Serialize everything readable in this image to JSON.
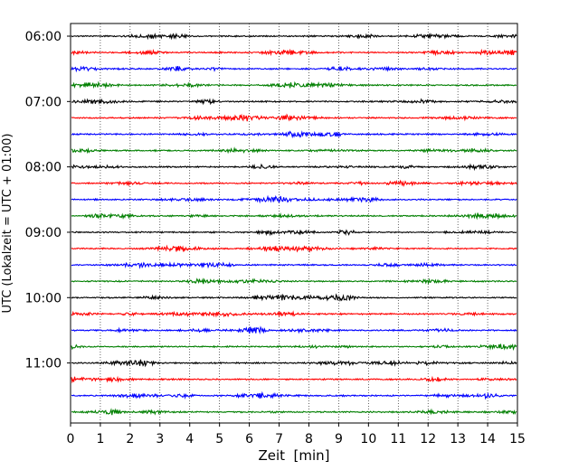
{
  "chart_data": {
    "type": "line",
    "title": "",
    "xlabel": "Zeit  [min]",
    "ylabel": "UTC (Lokalzeit = UTC + 01:00)",
    "xlim": [
      0,
      15
    ],
    "x_ticks": [
      "0",
      "1",
      "2",
      "3",
      "4",
      "5",
      "6",
      "7",
      "8",
      "9",
      "10",
      "11",
      "12",
      "13",
      "14",
      "15"
    ],
    "y_ticks": [
      "06:00",
      "07:00",
      "08:00",
      "09:00",
      "10:00",
      "11:00"
    ],
    "grid": "vertical dotted",
    "trace_colors": [
      "#000000",
      "#ff0000",
      "#0000ff",
      "#007f00"
    ],
    "traces": [
      {
        "start": "06:00",
        "color": "#000000"
      },
      {
        "start": "06:15",
        "color": "#ff0000"
      },
      {
        "start": "06:30",
        "color": "#0000ff"
      },
      {
        "start": "06:45",
        "color": "#007f00"
      },
      {
        "start": "07:00",
        "color": "#000000"
      },
      {
        "start": "07:15",
        "color": "#ff0000"
      },
      {
        "start": "07:30",
        "color": "#0000ff"
      },
      {
        "start": "07:45",
        "color": "#007f00"
      },
      {
        "start": "08:00",
        "color": "#000000"
      },
      {
        "start": "08:15",
        "color": "#ff0000"
      },
      {
        "start": "08:30",
        "color": "#0000ff"
      },
      {
        "start": "08:45",
        "color": "#007f00"
      },
      {
        "start": "09:00",
        "color": "#000000"
      },
      {
        "start": "09:15",
        "color": "#ff0000"
      },
      {
        "start": "09:30",
        "color": "#0000ff"
      },
      {
        "start": "09:45",
        "color": "#007f00"
      },
      {
        "start": "10:00",
        "color": "#000000"
      },
      {
        "start": "10:15",
        "color": "#ff0000"
      },
      {
        "start": "10:30",
        "color": "#0000ff"
      },
      {
        "start": "10:45",
        "color": "#007f00"
      },
      {
        "start": "11:00",
        "color": "#000000"
      },
      {
        "start": "11:15",
        "color": "#ff0000"
      },
      {
        "start": "11:30",
        "color": "#0000ff"
      },
      {
        "start": "11:45",
        "color": "#007f00"
      }
    ]
  }
}
